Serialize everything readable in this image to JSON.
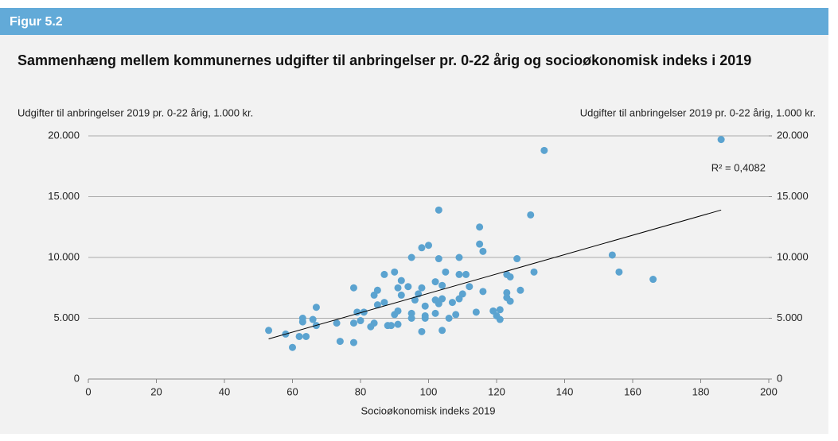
{
  "figure_label": "Figur 5.2",
  "chart_data": {
    "type": "scatter",
    "title": "Sammenhæng mellem kommunernes udgifter til anbringelser pr. 0-22 årig og socioøkonomisk indeks i 2019",
    "y_label": "Udgifter til anbringelser 2019  pr. 0-22 årig, 1.000 kr.",
    "y2_label": "Udgifter til anbringelser 2019  pr. 0-22 årig, 1.000 kr.",
    "x_label": "Socioøkonomisk indeks 2019",
    "annotation": "R² = 0,4082",
    "color": "#5ba3d0",
    "x": [
      53,
      58,
      60,
      62,
      63,
      63,
      64,
      66,
      67,
      67,
      73,
      74,
      78,
      78,
      78,
      79,
      80,
      81,
      83,
      84,
      84,
      85,
      85,
      87,
      87,
      88,
      89,
      90,
      90,
      91,
      91,
      91,
      92,
      92,
      94,
      95,
      95,
      95,
      96,
      97,
      98,
      98,
      98,
      99,
      99,
      99,
      100,
      102,
      102,
      102,
      103,
      103,
      103,
      104,
      104,
      104,
      105,
      106,
      107,
      108,
      109,
      109,
      109,
      110,
      111,
      112,
      114,
      115,
      115,
      116,
      116,
      119,
      120,
      121,
      121,
      123,
      123,
      123,
      124,
      124,
      126,
      127,
      130,
      131,
      134,
      154,
      156,
      166,
      186
    ],
    "values": [
      4000,
      3700,
      2600,
      3500,
      5000,
      4700,
      3500,
      4900,
      5900,
      4400,
      4600,
      3100,
      7500,
      4600,
      3000,
      5500,
      4800,
      5500,
      4300,
      4600,
      6900,
      7300,
      6100,
      6300,
      8600,
      4400,
      4400,
      8800,
      5300,
      4500,
      7500,
      5600,
      8100,
      6900,
      7600,
      10000,
      5400,
      5000,
      6500,
      7000,
      10800,
      3900,
      7500,
      5000,
      6000,
      5200,
      11000,
      5400,
      8000,
      6500,
      13900,
      9900,
      6200,
      7700,
      4000,
      6600,
      8800,
      5000,
      6300,
      5300,
      10000,
      8600,
      6600,
      7000,
      8600,
      7600,
      5500,
      12500,
      11100,
      10500,
      7200,
      5600,
      5200,
      5700,
      4900,
      8600,
      7100,
      6700,
      8400,
      6400,
      9900,
      7300,
      13500,
      8800,
      18800,
      10200,
      8800,
      8200,
      19700
    ],
    "trendline": {
      "x": [
        53,
        186
      ],
      "values": [
        3300,
        13900
      ]
    },
    "xlim": [
      0,
      200
    ],
    "xticks": [
      0,
      20,
      40,
      60,
      80,
      100,
      120,
      140,
      160,
      180,
      200
    ],
    "ylim": [
      0,
      20000
    ],
    "yticks": [
      0,
      {
        "value": 5000,
        "label": "5.000"
      },
      {
        "value": 10000,
        "label": "10.000"
      },
      {
        "value": 15000,
        "label": "15.000"
      },
      {
        "value": 20000,
        "label": "20.000"
      }
    ],
    "y2lim": [
      0,
      20000
    ],
    "y2ticks": [
      0,
      {
        "value": 5000,
        "label": "5.000"
      },
      {
        "value": 10000,
        "label": "10.000"
      },
      {
        "value": 15000,
        "label": "15.000"
      },
      {
        "value": 20000,
        "label": "20.000"
      }
    ],
    "grid": true
  }
}
